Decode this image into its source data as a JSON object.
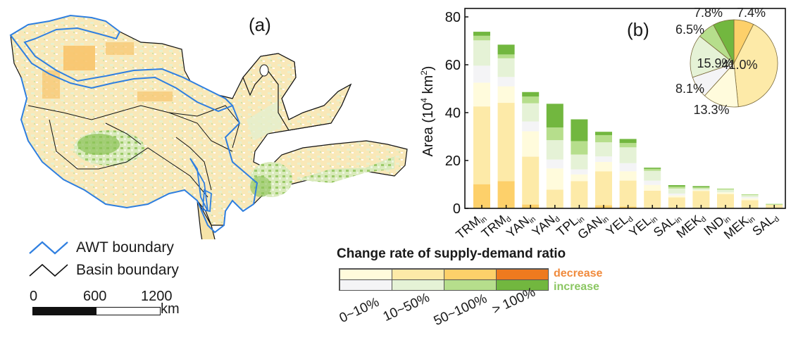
{
  "panel_a": {
    "label": "(a)",
    "legend": [
      {
        "label": "AWT boundary",
        "color": "#2f7fe0"
      },
      {
        "label": "Basin boundary",
        "color": "#111111"
      }
    ],
    "scale_bar": {
      "ticks": [
        "0",
        "600",
        "1200"
      ],
      "unit": "km"
    },
    "map_colors": {
      "pale_yellow": "#fbe7b0",
      "orange": "#f8c46c",
      "pale_green": "#dcedc2",
      "green": "#8ac255"
    }
  },
  "legend_b": {
    "title": "Change rate of supply-demand ratio",
    "decrease_label": "decrease",
    "increase_label": "increase",
    "decrease_color_text": "#f08a3c",
    "increase_color_text": "#8cc763",
    "ranges": [
      "0~10%",
      "10~50%",
      "50~100%",
      "> 100%"
    ],
    "decrease_colors": [
      "#fffbdc",
      "#fdeaa8",
      "#fdd06a",
      "#ee7a1f"
    ],
    "increase_colors": [
      "#f4f4f6",
      "#e5f2d6",
      "#b6de8c",
      "#72b73f"
    ]
  },
  "chart_data": [
    {
      "type": "bar",
      "stacked": true,
      "title": "(b)",
      "xlabel": "",
      "ylabel": "Area (10^4 km^2)",
      "ylim": [
        0,
        80
      ],
      "yticks": [
        0,
        20,
        40,
        60,
        80
      ],
      "categories": [
        {
          "base": "TRM",
          "sub": "in"
        },
        {
          "base": "TRM",
          "sub": "d"
        },
        {
          "base": "YAN",
          "sub": "in"
        },
        {
          "base": "YAN",
          "sub": "d"
        },
        {
          "base": "TPL",
          "sub": "in"
        },
        {
          "base": "GAN",
          "sub": "in"
        },
        {
          "base": "YEL",
          "sub": "d"
        },
        {
          "base": "YEL",
          "sub": "in"
        },
        {
          "base": "SAL",
          "sub": "in"
        },
        {
          "base": "MEK",
          "sub": "d"
        },
        {
          "base": "IND",
          "sub": "in"
        },
        {
          "base": "MEK",
          "sub": "in"
        },
        {
          "base": "SAL",
          "sub": "d"
        }
      ],
      "series": [
        {
          "name": "decrease 50~100%",
          "color": "#fdd06a",
          "values": [
            10.1,
            11.4,
            1.6,
            0.0,
            0.0,
            1.3,
            0.8,
            0.0,
            0.0,
            0.0,
            0.0,
            0.0,
            0.0
          ]
        },
        {
          "name": "decrease 10~50%",
          "color": "#fdeaa8",
          "values": [
            32.5,
            32.7,
            20.0,
            7.8,
            11.4,
            14.2,
            10.8,
            7.4,
            4.6,
            7.3,
            6.0,
            3.4,
            1.5
          ]
        },
        {
          "name": "decrease 0~10%",
          "color": "#fffbdc",
          "values": [
            9.9,
            6.9,
            10.6,
            8.9,
            2.8,
            3.9,
            3.9,
            2.4,
            0.8,
            0.3,
            0.7,
            0.8,
            0.0
          ]
        },
        {
          "name": "increase 0~10%",
          "color": "#f4f4f6",
          "values": [
            7.1,
            3.9,
            4.1,
            3.7,
            2.1,
            2.3,
            3.4,
            1.8,
            0.8,
            0.0,
            0.0,
            0.5,
            0.0
          ]
        },
        {
          "name": "increase 10~50%",
          "color": "#e5f2d6",
          "values": [
            10.6,
            7.8,
            7.6,
            8.1,
            6.2,
            5.9,
            6.6,
            4.1,
            2.1,
            0.7,
            1.1,
            0.8,
            0.0
          ]
        },
        {
          "name": "increase 50~100%",
          "color": "#b6de8c",
          "values": [
            1.9,
            1.6,
            2.8,
            5.3,
            5.6,
            3.0,
            1.8,
            0.8,
            0.8,
            0.5,
            0.5,
            0.4,
            0.4
          ]
        },
        {
          "name": "increase >100%",
          "color": "#72b73f",
          "values": [
            1.7,
            4.1,
            1.9,
            9.9,
            9.1,
            1.4,
            1.7,
            0.5,
            0.6,
            0.5,
            0.0,
            0.0,
            0.0
          ]
        }
      ]
    },
    {
      "type": "pie",
      "title": "",
      "slices": [
        {
          "label": "7.4%",
          "value": 7.4,
          "color": "#fdd06a"
        },
        {
          "label": "41.0%",
          "value": 41.0,
          "color": "#fdeaa8"
        },
        {
          "label": "13.3%",
          "value": 13.3,
          "color": "#fffbdc"
        },
        {
          "label": "8.1%",
          "value": 8.1,
          "color": "#f4f4f6"
        },
        {
          "label": "15.9%",
          "value": 15.9,
          "color": "#e5f2d6"
        },
        {
          "label": "6.5%",
          "value": 6.5,
          "color": "#b6de8c"
        },
        {
          "label": "7.8%",
          "value": 7.8,
          "color": "#72b73f"
        }
      ],
      "start": "top",
      "direction": "clockwise"
    }
  ]
}
